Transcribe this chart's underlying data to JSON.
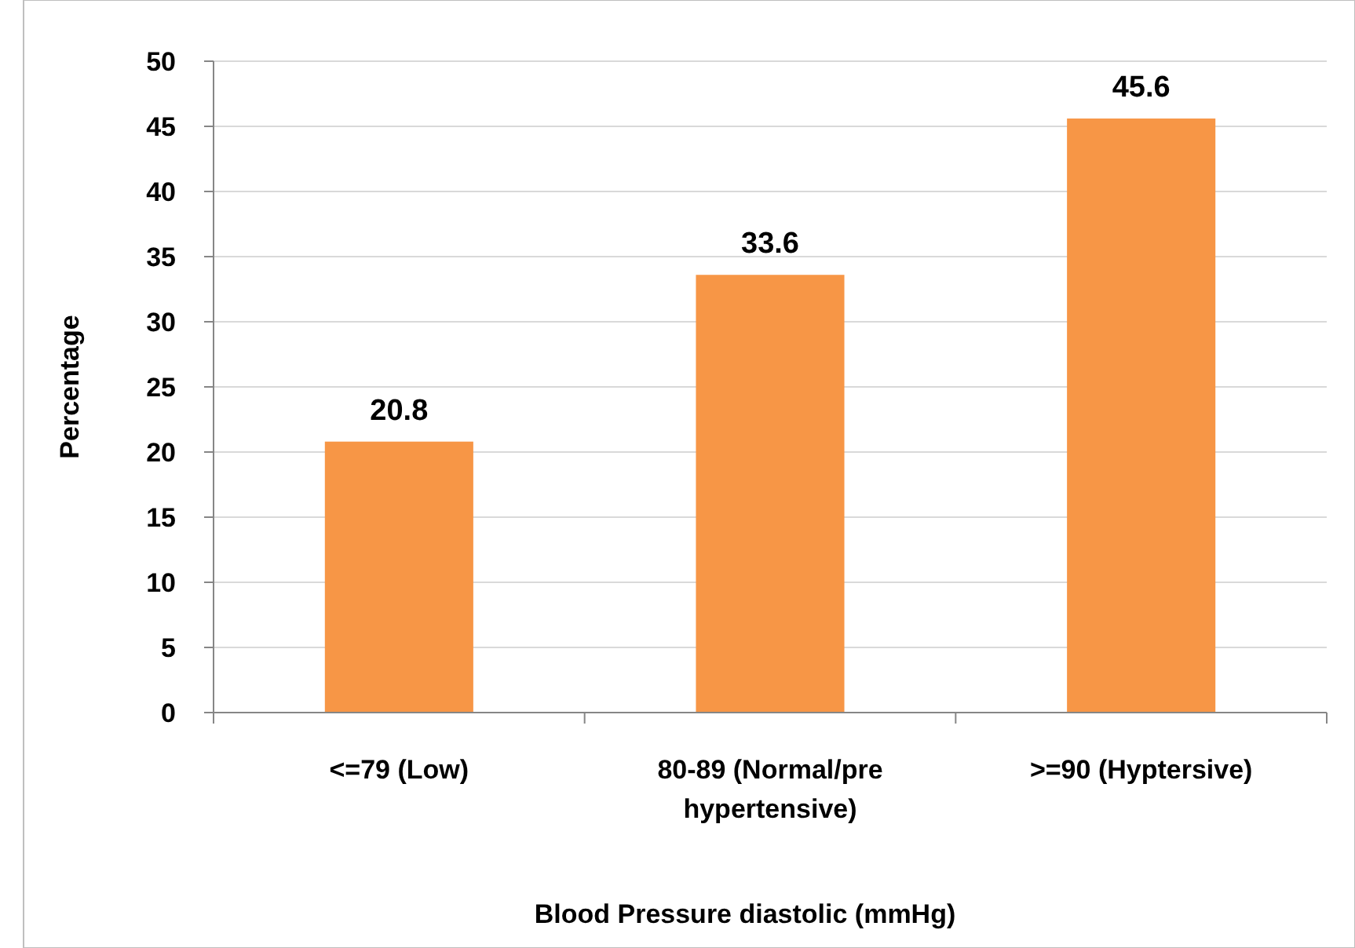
{
  "chart_data": {
    "type": "bar",
    "xlabel": "Blood Pressure diastolic (mmHg)",
    "ylabel": "Percentage",
    "categories": [
      "<=79 (Low)",
      "80-89 (Normal/pre hypertensive)",
      ">=90 (Hyptersive)"
    ],
    "values": [
      20.8,
      33.6,
      45.6
    ],
    "color": "#f79646",
    "ylim": [
      0,
      50
    ],
    "yticks": [
      0,
      5,
      10,
      15,
      20,
      25,
      30,
      35,
      40,
      45,
      50
    ],
    "grid": "y",
    "data_labels": true
  }
}
